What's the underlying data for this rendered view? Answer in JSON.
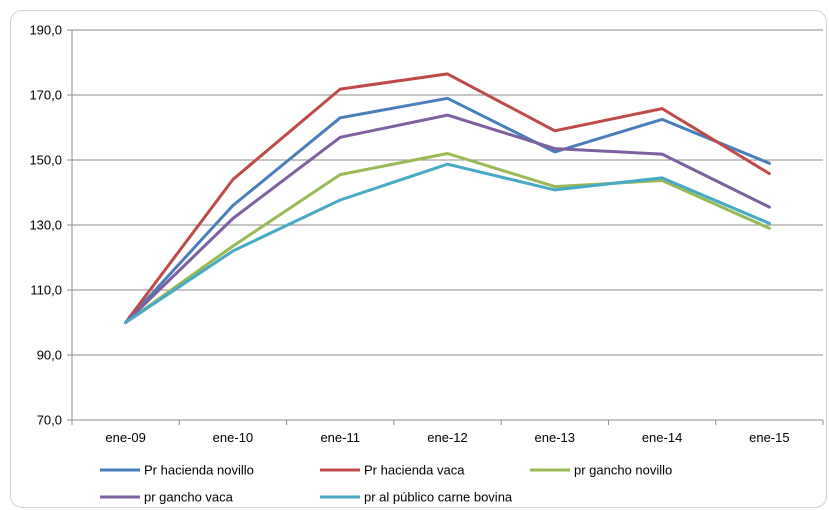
{
  "chart_data": {
    "type": "line",
    "categories": [
      "ene-09",
      "ene-10",
      "ene-11",
      "ene-12",
      "ene-13",
      "ene-14",
      "ene-15"
    ],
    "y_ticks": [
      "70,0",
      "90,0",
      "110,0",
      "130,0",
      "150,0",
      "170,0",
      "190,0"
    ],
    "ylim": [
      70,
      190
    ],
    "grid": true,
    "legend_position": "bottom",
    "series": [
      {
        "name": "Pr hacienda novillo",
        "color": "#4a7ebb",
        "values": [
          100,
          136,
          163,
          169,
          152.5,
          162.5,
          149
        ]
      },
      {
        "name": "Pr hacienda vaca",
        "color": "#be4b48",
        "values": [
          100,
          144,
          171.8,
          176.5,
          159,
          165.8,
          145.8
        ]
      },
      {
        "name": "pr gancho novillo",
        "color": "#98b954",
        "values": [
          100,
          123.5,
          145.5,
          152,
          141.8,
          143.7,
          129
        ]
      },
      {
        "name": "pr gancho vaca",
        "color": "#7d60a0",
        "values": [
          100,
          132,
          157,
          163.8,
          153.5,
          151.8,
          135.5
        ]
      },
      {
        "name": "pr al público carne bovina",
        "color": "#46aac5",
        "values": [
          100,
          122,
          137.7,
          148.7,
          140.8,
          144.5,
          130.5
        ]
      }
    ]
  }
}
